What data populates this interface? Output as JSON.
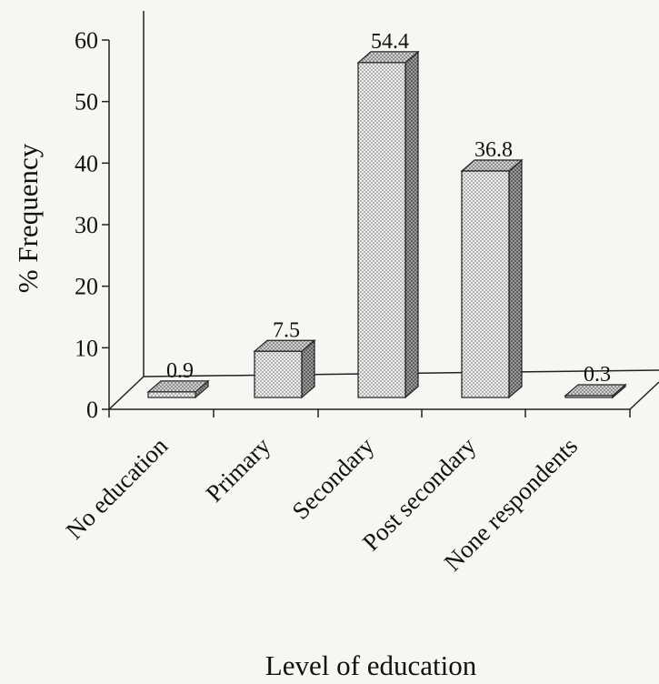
{
  "chart_data": {
    "type": "bar",
    "style": "3d-column",
    "categories": [
      "No education",
      "Primary",
      "Secondary",
      "Post secondary",
      "None respondents"
    ],
    "values": [
      0.9,
      7.5,
      54.4,
      36.8,
      0.3
    ],
    "data_labels": [
      "0.9",
      "7.5",
      "54.4",
      "36.8",
      "0.3"
    ],
    "title": "",
    "xlabel": "Level of education",
    "ylabel": "% Frequency",
    "ylim": [
      0,
      60
    ],
    "yticks": [
      0,
      10,
      20,
      30,
      40,
      50,
      60
    ],
    "grid": false,
    "legend": "none",
    "colors": {
      "bar_front": "#ececec",
      "bar_top": "#c8c8c8",
      "bar_side": "#8e8e8e",
      "axis": "#222222"
    }
  }
}
